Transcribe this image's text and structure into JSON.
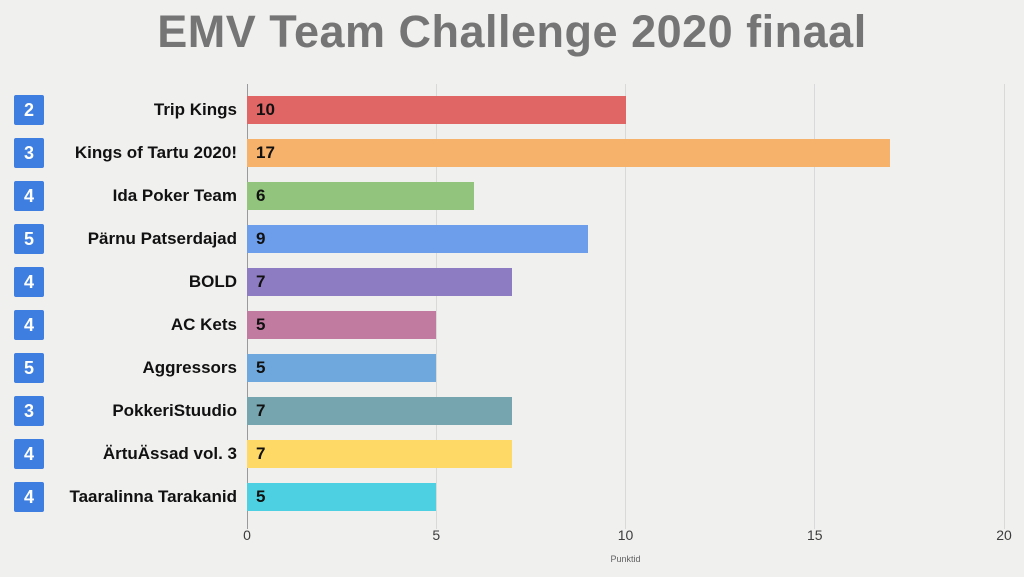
{
  "chart_data": {
    "type": "bar",
    "orientation": "horizontal",
    "title": "EMV Team Challenge 2020 finaal",
    "xlabel": "Punktid",
    "xlim": [
      0,
      20
    ],
    "xticks": [
      0,
      5,
      10,
      15,
      20
    ],
    "grid": true,
    "legend": false,
    "value_labels_inside_bars": true,
    "categories": [
      "Trip Kings",
      "Kings of Tartu 2020!",
      "Ida Poker Team",
      "Pärnu Patserdajad",
      "BOLD",
      "AC Kets",
      "Aggressors",
      "PokkeriStuudio",
      "ÄrtuÄssad vol. 3",
      "Taaralinna Tarakanid"
    ],
    "values": [
      10,
      17,
      6,
      9,
      7,
      5,
      5,
      7,
      7,
      5
    ],
    "rank_badges": [
      "2",
      "3",
      "4",
      "5",
      "4",
      "4",
      "5",
      "3",
      "4",
      "4"
    ],
    "bar_colors": [
      "#e06666",
      "#f6b26b",
      "#93c47d",
      "#6d9eeb",
      "#8e7cc3",
      "#c27ba0",
      "#6fa8dc",
      "#76a5af",
      "#ffd966",
      "#4dd0e1"
    ]
  },
  "colors": {
    "background": "#f0f0ef",
    "title_text": "#757575",
    "badge_background": "#3d7ee0",
    "badge_text": "#ffffff",
    "axis_line": "#9a9a9a",
    "gridline": "#d9d9d9",
    "tick_text": "#3c3c3c",
    "label_text": "#111111",
    "axis_title_text": "#616161"
  }
}
